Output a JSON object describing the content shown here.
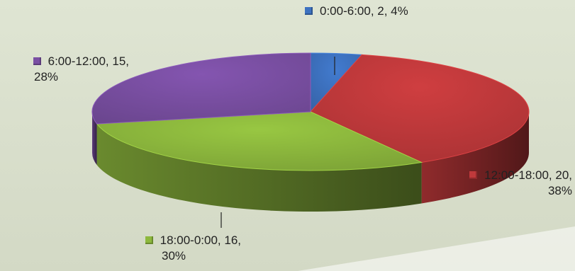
{
  "chart_data": {
    "type": "pie",
    "title": "",
    "legend": "none",
    "slices": [
      {
        "label": "0:00-6:00",
        "value": 2,
        "percent": "4%",
        "color": "#3d72c0"
      },
      {
        "label": "12:00-18:00",
        "value": 20,
        "percent": "38%",
        "color": "#c0393b"
      },
      {
        "label": "18:00-0:00",
        "value": 16,
        "percent": "30%",
        "color": "#8db83d"
      },
      {
        "label": "6:00-12:00",
        "value": 15,
        "percent": "28%",
        "color": "#7a4fa3"
      }
    ],
    "data_labels": [
      {
        "line1": "0:00-6:00, 2, 4%",
        "line2": ""
      },
      {
        "line1": "12:00-18:00, 20,",
        "line2": "38%"
      },
      {
        "line1": "18:00-0:00, 16,",
        "line2": "30%"
      },
      {
        "line1": "6:00-12:00, 15,",
        "line2": "28%"
      }
    ]
  },
  "background_color": "#d9dfcc"
}
